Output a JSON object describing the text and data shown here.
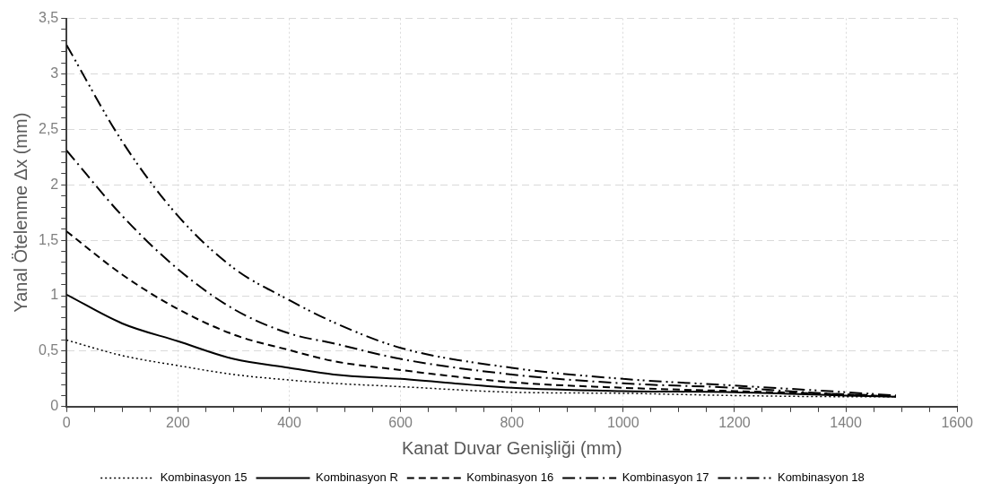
{
  "chart_data": {
    "type": "line",
    "xlabel": "Kanat Duvar Genişliği (mm)",
    "ylabel": "Yanal Ötelenme Δx (mm)",
    "x": [
      0,
      100,
      200,
      300,
      400,
      480,
      600,
      800,
      1000,
      1200,
      1400,
      1490
    ],
    "series": [
      {
        "name": "Kombinasyon 15",
        "color": "#000000",
        "line_style": "dotted",
        "values": [
          0.6,
          0.46,
          0.37,
          0.29,
          0.24,
          0.21,
          0.18,
          0.13,
          0.12,
          0.1,
          0.09,
          0.09
        ]
      },
      {
        "name": "Kombinasyon R",
        "color": "#000000",
        "line_style": "solid",
        "values": [
          1.01,
          0.75,
          0.59,
          0.43,
          0.35,
          0.29,
          0.25,
          0.17,
          0.14,
          0.13,
          0.1,
          0.09
        ]
      },
      {
        "name": "Kombinasyon 16",
        "color": "#000000",
        "line_style": "dashed",
        "values": [
          1.58,
          1.19,
          0.88,
          0.65,
          0.51,
          0.41,
          0.33,
          0.22,
          0.17,
          0.14,
          0.11,
          0.09
        ]
      },
      {
        "name": "Kombinasyon 17",
        "color": "#000000",
        "line_style": "dashdot",
        "values": [
          2.31,
          1.72,
          1.24,
          0.88,
          0.66,
          0.57,
          0.43,
          0.29,
          0.21,
          0.17,
          0.11,
          0.1
        ]
      },
      {
        "name": "Kombinasyon 18",
        "color": "#000000",
        "line_style": "dashdotdot",
        "values": [
          3.26,
          2.39,
          1.72,
          1.25,
          0.96,
          0.76,
          0.53,
          0.35,
          0.25,
          0.19,
          0.13,
          0.1
        ]
      }
    ],
    "xlim": [
      0,
      1600
    ],
    "xticks": [
      0,
      {
        "value": 50,
        "label": null
      },
      {
        "value": 100,
        "label": null
      },
      {
        "value": 150,
        "label": null
      },
      200,
      {
        "value": 250,
        "label": null
      },
      {
        "value": 300,
        "label": null
      },
      {
        "value": 350,
        "label": null
      },
      400,
      {
        "value": 450,
        "label": null
      },
      {
        "value": 500,
        "label": null
      },
      {
        "value": 550,
        "label": null
      },
      600,
      {
        "value": 650,
        "label": null
      },
      {
        "value": 700,
        "label": null
      },
      {
        "value": 750,
        "label": null
      },
      800,
      {
        "value": 850,
        "label": null
      },
      {
        "value": 900,
        "label": null
      },
      {
        "value": 950,
        "label": null
      },
      1000,
      {
        "value": 1050,
        "label": null
      },
      {
        "value": 1100,
        "label": null
      },
      {
        "value": 1150,
        "label": null
      },
      1200,
      {
        "value": 1250,
        "label": null
      },
      {
        "value": 1300,
        "label": null
      },
      {
        "value": 1350,
        "label": null
      },
      1400,
      {
        "value": 1450,
        "label": null
      },
      {
        "value": 1500,
        "label": null
      },
      {
        "value": 1550,
        "label": null
      },
      1600
    ],
    "ylim": [
      0,
      3.5
    ],
    "yticks": [
      0,
      {
        "value": 0.1,
        "label": null
      },
      {
        "value": 0.2,
        "label": null
      },
      {
        "value": 0.3,
        "label": null
      },
      {
        "value": 0.4,
        "label": null
      },
      {
        "value": 0.5,
        "label": "0,5"
      },
      {
        "value": 0.6,
        "label": null
      },
      {
        "value": 0.7,
        "label": null
      },
      {
        "value": 0.8,
        "label": null
      },
      {
        "value": 0.9,
        "label": null
      },
      1,
      {
        "value": 1.1,
        "label": null
      },
      {
        "value": 1.2,
        "label": null
      },
      {
        "value": 1.3,
        "label": null
      },
      {
        "value": 1.4,
        "label": null
      },
      {
        "value": 1.5,
        "label": "1,5"
      },
      {
        "value": 1.6,
        "label": null
      },
      {
        "value": 1.7,
        "label": null
      },
      {
        "value": 1.8,
        "label": null
      },
      {
        "value": 1.9,
        "label": null
      },
      2,
      {
        "value": 2.1,
        "label": null
      },
      {
        "value": 2.2,
        "label": null
      },
      {
        "value": 2.3,
        "label": null
      },
      {
        "value": 2.4,
        "label": null
      },
      {
        "value": 2.5,
        "label": "2,5"
      },
      {
        "value": 2.6,
        "label": null
      },
      {
        "value": 2.7,
        "label": null
      },
      {
        "value": 2.8,
        "label": null
      },
      {
        "value": 2.9,
        "label": null
      },
      3,
      {
        "value": 3.1,
        "label": null
      },
      {
        "value": 3.2,
        "label": null
      },
      {
        "value": 3.3,
        "label": null
      },
      {
        "value": 3.4,
        "label": null
      },
      {
        "value": 3.5,
        "label": "3,5"
      }
    ],
    "grid": true,
    "legend": "bottom",
    "marker": "none"
  }
}
